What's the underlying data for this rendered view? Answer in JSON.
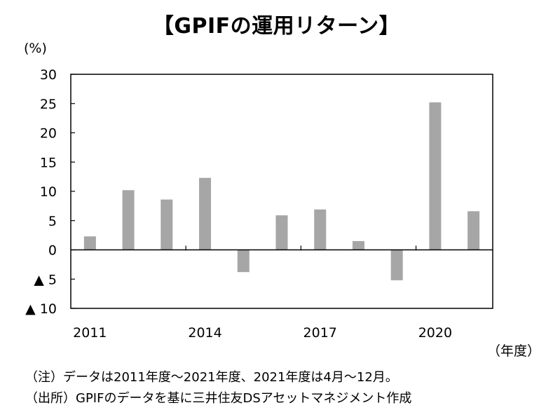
{
  "title": "【GPIFの運用リターン】",
  "y_unit": "(%)",
  "x_unit": "（年度）",
  "notes": [
    "（注）データは2011年度～2021年度、2021年度は4月～12月。",
    "（出所）GPIFのデータを基に三井住友DSアセットマネジメント作成"
  ],
  "chart_data": {
    "type": "bar",
    "title": "【GPIFの運用リターン】",
    "ylabel": "(%)",
    "xlabel": "（年度）",
    "categories": [
      "2011",
      "2012",
      "2013",
      "2014",
      "2015",
      "2016",
      "2017",
      "2018",
      "2019",
      "2020",
      "2021"
    ],
    "values": [
      2.3,
      10.2,
      8.6,
      12.3,
      -3.8,
      5.9,
      6.9,
      1.5,
      -5.2,
      25.2,
      6.6
    ],
    "x_tick_labels": [
      "2011",
      "2014",
      "2017",
      "2020"
    ],
    "y_ticks": [
      {
        "value": 30,
        "label": "30"
      },
      {
        "value": 25,
        "label": "25"
      },
      {
        "value": 20,
        "label": "20"
      },
      {
        "value": 15,
        "label": "15"
      },
      {
        "value": 10,
        "label": "10"
      },
      {
        "value": 5,
        "label": "5"
      },
      {
        "value": 0,
        "label": "0"
      },
      {
        "value": -5,
        "label": "▲ 5"
      },
      {
        "value": -10,
        "label": "▲ 10"
      }
    ],
    "ylim": [
      -10,
      30
    ],
    "grid": false,
    "legend": "none",
    "bar_color": "#a6a6a6"
  }
}
